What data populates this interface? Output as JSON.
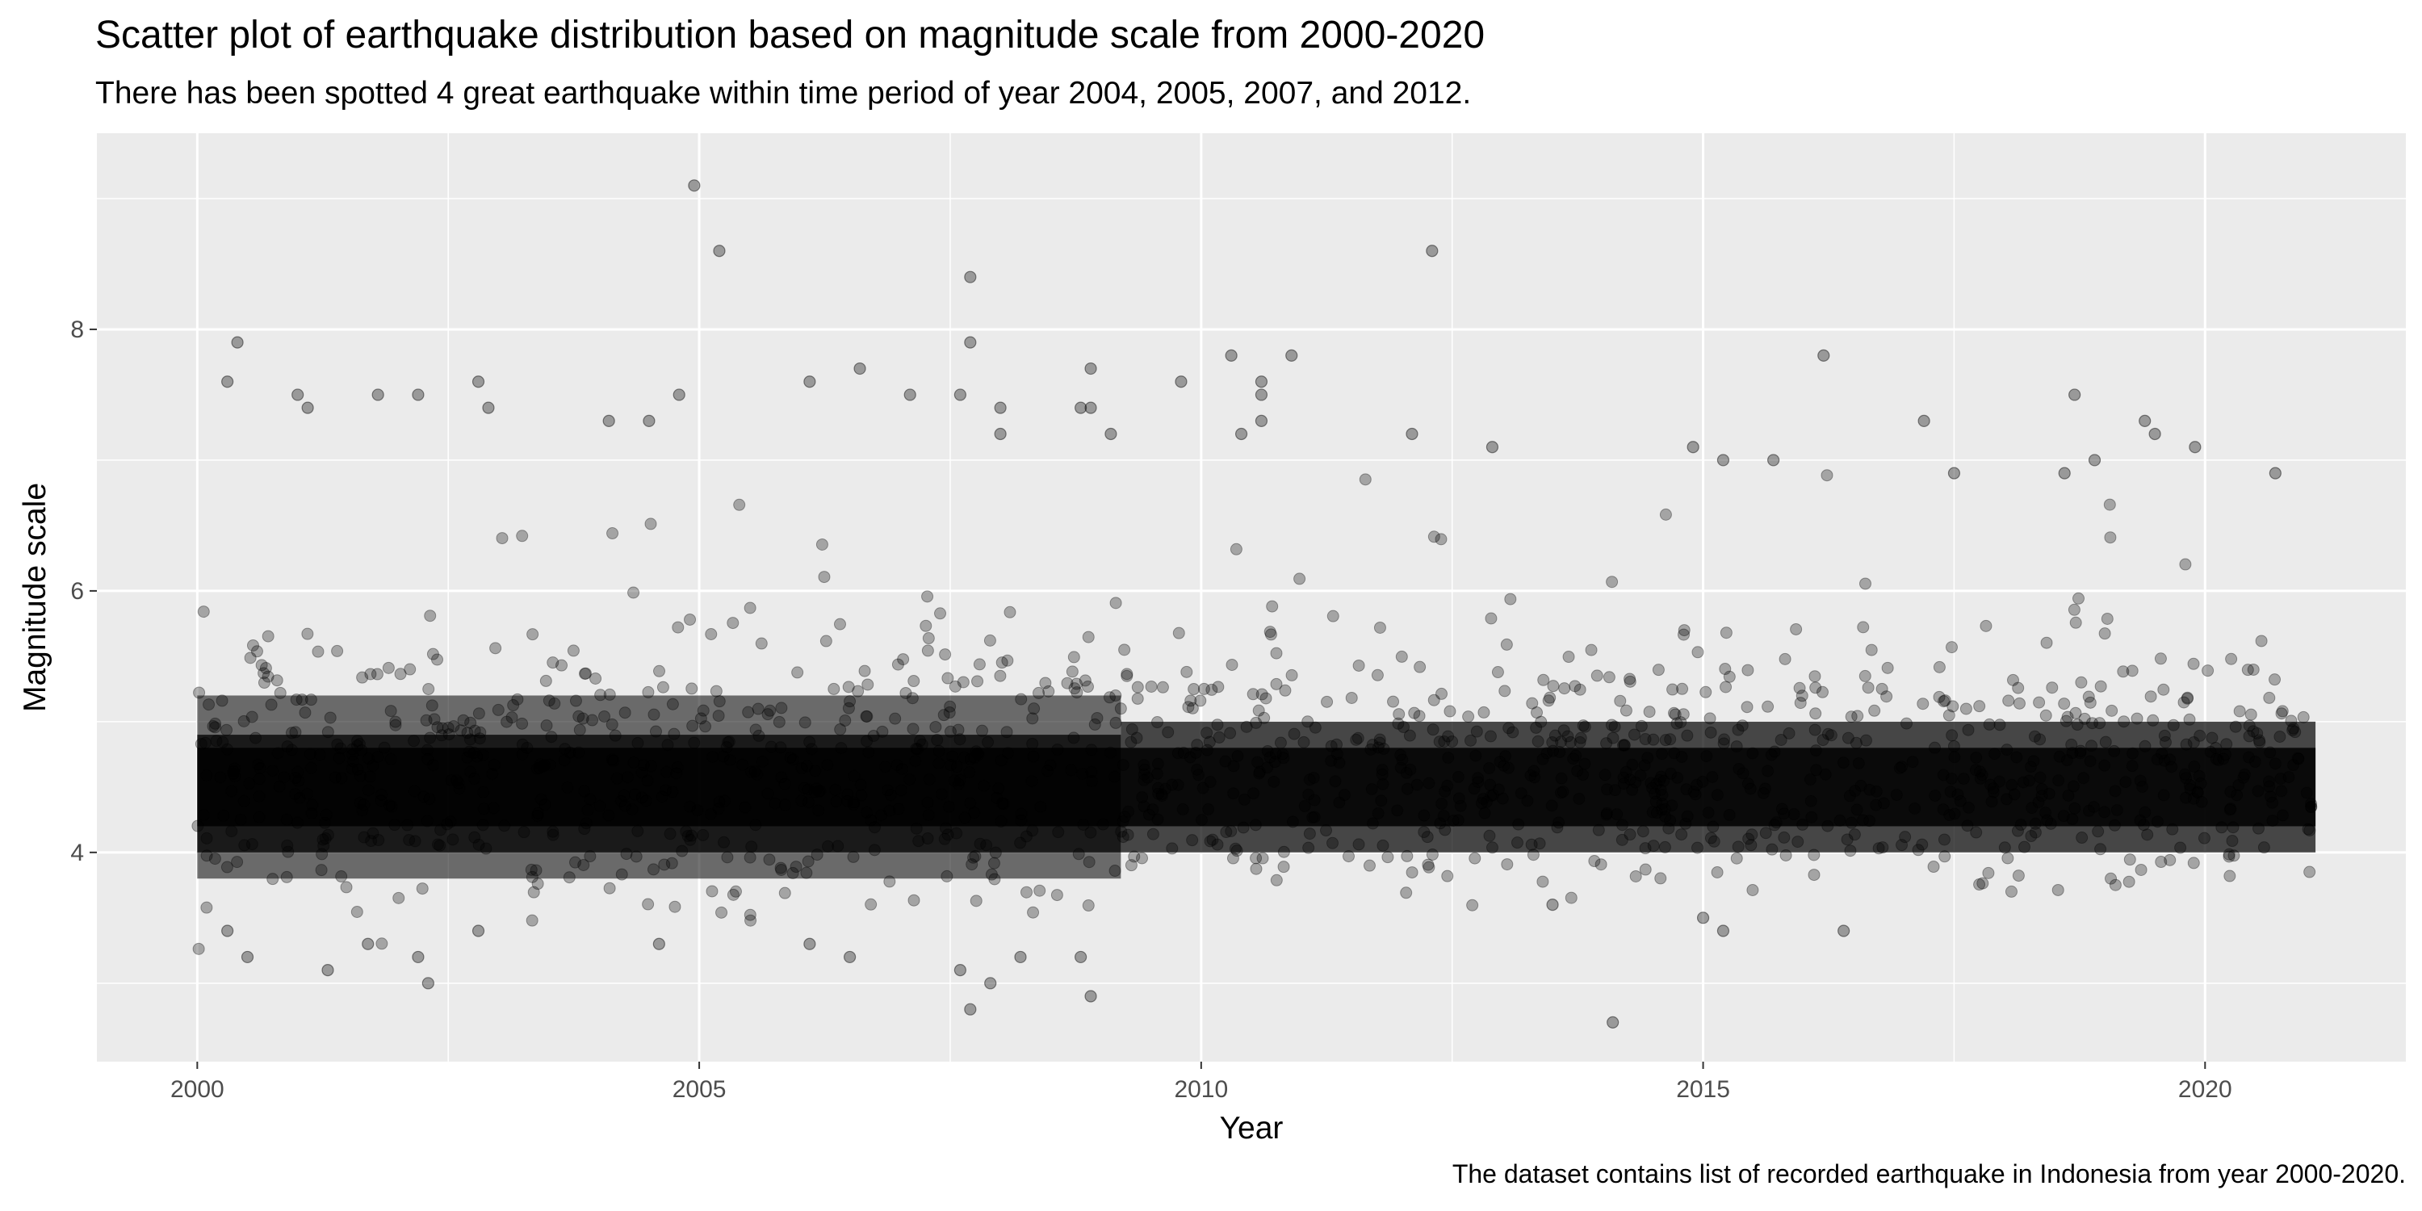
{
  "chart_data": {
    "type": "scatter",
    "title": "Scatter plot of earthquake distribution based on magnitude scale from 2000-2020",
    "subtitle": "There has been spotted 4 great earthquake within time period of year 2004, 2005, 2007, and 2012.",
    "caption": "The dataset contains list of recorded earthquake in Indonesia from year 2000-2020.",
    "xlabel": "Year",
    "ylabel": "Magnitude scale",
    "xlim": [
      1999,
      2022
    ],
    "ylim": [
      2.4,
      9.5
    ],
    "x_ticks": [
      2000,
      2005,
      2010,
      2015,
      2020
    ],
    "x_tick_labels": [
      "2000",
      "2005",
      "2010",
      "2015",
      "2020"
    ],
    "y_ticks": [
      4,
      6,
      8
    ],
    "y_tick_labels": [
      "4",
      "6",
      "8"
    ],
    "grid": true,
    "point_color": "#000000",
    "point_opacity": 0.3,
    "panel_background": "#ebebeb",
    "grid_color": "#ffffff",
    "series": [
      {
        "values": [
          {
            "x": 2000.4,
            "y": 7.9
          },
          {
            "x": 2000.3,
            "y": 7.6
          },
          {
            "x": 2001.0,
            "y": 7.5
          },
          {
            "x": 2001.1,
            "y": 7.4
          },
          {
            "x": 2001.8,
            "y": 7.5
          },
          {
            "x": 2002.2,
            "y": 7.5
          },
          {
            "x": 2002.8,
            "y": 7.6
          },
          {
            "x": 2002.9,
            "y": 7.4
          },
          {
            "x": 2004.1,
            "y": 7.3
          },
          {
            "x": 2004.5,
            "y": 7.3
          },
          {
            "x": 2004.8,
            "y": 7.5
          },
          {
            "x": 2004.95,
            "y": 9.1
          },
          {
            "x": 2005.2,
            "y": 8.6
          },
          {
            "x": 2006.1,
            "y": 7.6
          },
          {
            "x": 2006.6,
            "y": 7.7
          },
          {
            "x": 2007.1,
            "y": 7.5
          },
          {
            "x": 2007.6,
            "y": 7.5
          },
          {
            "x": 2007.7,
            "y": 8.4
          },
          {
            "x": 2007.7,
            "y": 7.9
          },
          {
            "x": 2008.0,
            "y": 7.4
          },
          {
            "x": 2008.0,
            "y": 7.2
          },
          {
            "x": 2008.9,
            "y": 7.7
          },
          {
            "x": 2008.9,
            "y": 7.4
          },
          {
            "x": 2008.8,
            "y": 7.4
          },
          {
            "x": 2009.1,
            "y": 7.2
          },
          {
            "x": 2009.8,
            "y": 7.6
          },
          {
            "x": 2010.3,
            "y": 7.8
          },
          {
            "x": 2010.6,
            "y": 7.6
          },
          {
            "x": 2010.6,
            "y": 7.5
          },
          {
            "x": 2010.6,
            "y": 7.3
          },
          {
            "x": 2010.4,
            "y": 7.2
          },
          {
            "x": 2010.9,
            "y": 7.8
          },
          {
            "x": 2012.1,
            "y": 7.2
          },
          {
            "x": 2012.3,
            "y": 8.6
          },
          {
            "x": 2012.9,
            "y": 7.1
          },
          {
            "x": 2014.9,
            "y": 7.1
          },
          {
            "x": 2015.2,
            "y": 7.0
          },
          {
            "x": 2015.7,
            "y": 7.0
          },
          {
            "x": 2016.2,
            "y": 7.8
          },
          {
            "x": 2017.2,
            "y": 7.3
          },
          {
            "x": 2017.5,
            "y": 6.9
          },
          {
            "x": 2018.7,
            "y": 7.5
          },
          {
            "x": 2018.9,
            "y": 7.0
          },
          {
            "x": 2019.4,
            "y": 7.3
          },
          {
            "x": 2019.5,
            "y": 7.2
          },
          {
            "x": 2019.9,
            "y": 7.1
          },
          {
            "x": 2020.7,
            "y": 6.9
          },
          {
            "x": 2018.6,
            "y": 6.9
          },
          {
            "x": 2000.3,
            "y": 3.4
          },
          {
            "x": 2000.5,
            "y": 3.2
          },
          {
            "x": 2001.3,
            "y": 3.1
          },
          {
            "x": 2001.7,
            "y": 3.3
          },
          {
            "x": 2002.2,
            "y": 3.2
          },
          {
            "x": 2002.3,
            "y": 3.0
          },
          {
            "x": 2002.8,
            "y": 3.4
          },
          {
            "x": 2004.6,
            "y": 3.3
          },
          {
            "x": 2006.1,
            "y": 3.3
          },
          {
            "x": 2006.5,
            "y": 3.2
          },
          {
            "x": 2007.6,
            "y": 3.1
          },
          {
            "x": 2007.7,
            "y": 2.8
          },
          {
            "x": 2007.9,
            "y": 3.0
          },
          {
            "x": 2008.2,
            "y": 3.2
          },
          {
            "x": 2008.9,
            "y": 2.9
          },
          {
            "x": 2008.8,
            "y": 3.2
          },
          {
            "x": 2014.1,
            "y": 2.7
          },
          {
            "x": 2015.2,
            "y": 3.4
          },
          {
            "x": 2016.4,
            "y": 3.4
          },
          {
            "x": 2015.0,
            "y": 3.5
          },
          {
            "x": 2013.5,
            "y": 3.6
          }
        ]
      }
    ]
  }
}
